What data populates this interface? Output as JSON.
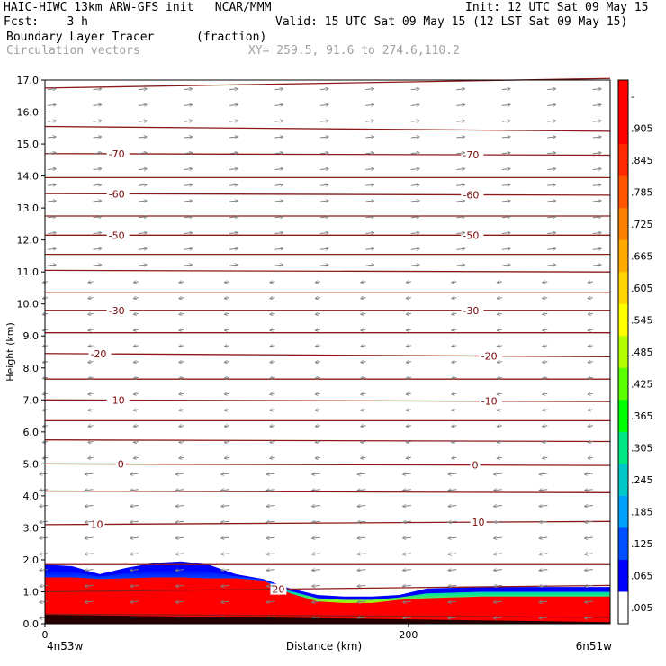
{
  "header": {
    "line1_left": "HAIC-HIWC 13km ARW-GFS init   NCAR/MMM",
    "line1_right": "Init: 12 UTC Sat 09 May 15",
    "line2_left": "Fcst:    3 h",
    "line2_right": "Valid: 15 UTC Sat 09 May 15 (12 LST Sat 09 May 15)",
    "line3_left": "Boundary Layer Tracer",
    "line3_unit": "(fraction)",
    "line4_left": "Circulation vectors",
    "line4_xy": "XY= 259.5, 91.6 to 274.6,110.2"
  },
  "chart_data": {
    "type": "heatmap",
    "ylabel": "Height (km)",
    "xlabel": "Distance (km)",
    "ylim": [
      0,
      17
    ],
    "xlim": [
      0,
      311
    ],
    "y_ticks": [
      "0.0",
      "1.0",
      "2.0",
      "3.0",
      "4.0",
      "5.0",
      "6.0",
      "7.0",
      "8.0",
      "9.0",
      "10.0",
      "11.0",
      "12.0",
      "13.0",
      "14.0",
      "15.0",
      "16.0",
      "17.0"
    ],
    "x_ticks": [
      {
        "value": 0,
        "label": "0"
      },
      {
        "value": 200,
        "label": "200"
      }
    ],
    "x_endpoints": {
      "left": "4n53w",
      "right": "6n51w"
    },
    "colorbar": {
      "labels": [
        "-",
        ".905",
        ".845",
        ".785",
        ".725",
        ".665",
        ".605",
        ".545",
        ".485",
        ".425",
        ".365",
        ".305",
        ".245",
        ".185",
        ".125",
        ".065",
        ".005"
      ],
      "colors": [
        "#ff0000",
        "#ff0000",
        "#ff2a00",
        "#ff5500",
        "#ff8000",
        "#ffaa00",
        "#ffd400",
        "#ffff00",
        "#b4ff00",
        "#5aff00",
        "#00ff00",
        "#00e680",
        "#00c8c8",
        "#00a0ff",
        "#0050ff",
        "#0000ff",
        "#ffffff"
      ]
    },
    "tracer_top_km": [
      {
        "x": 0,
        "red": 1.45,
        "blue": 1.85
      },
      {
        "x": 15,
        "red": 1.45,
        "blue": 1.8
      },
      {
        "x": 30,
        "red": 1.4,
        "blue": 1.55
      },
      {
        "x": 45,
        "red": 1.42,
        "blue": 1.75
      },
      {
        "x": 60,
        "red": 1.45,
        "blue": 1.9
      },
      {
        "x": 75,
        "red": 1.45,
        "blue": 1.95
      },
      {
        "x": 90,
        "red": 1.42,
        "blue": 1.85
      },
      {
        "x": 105,
        "red": 1.42,
        "blue": 1.55
      },
      {
        "x": 120,
        "red": 1.35,
        "blue": 1.4
      },
      {
        "x": 135,
        "red": 0.95,
        "blue": 1.1
      },
      {
        "x": 150,
        "red": 0.7,
        "blue": 0.9
      },
      {
        "x": 165,
        "red": 0.65,
        "blue": 0.85
      },
      {
        "x": 180,
        "red": 0.65,
        "blue": 0.85
      },
      {
        "x": 195,
        "red": 0.75,
        "blue": 0.9
      },
      {
        "x": 210,
        "red": 0.8,
        "blue": 1.1
      },
      {
        "x": 240,
        "red": 0.85,
        "blue": 1.15
      },
      {
        "x": 270,
        "red": 0.85,
        "blue": 1.15
      },
      {
        "x": 311,
        "red": 0.85,
        "blue": 1.15
      }
    ],
    "contours": [
      {
        "label": "-70",
        "y_left": 14.7,
        "y_right": 14.65,
        "label_x": [
          35,
          230
        ]
      },
      {
        "label": "-60",
        "y_left": 13.45,
        "y_right": 13.4,
        "label_x": [
          35,
          230
        ]
      },
      {
        "label": "-50",
        "y_left": 12.15,
        "y_right": 12.15,
        "label_x": [
          35,
          230
        ]
      },
      {
        "label": "-30",
        "y_left": 9.8,
        "y_right": 9.8,
        "label_x": [
          35,
          230
        ]
      },
      {
        "label": "-20",
        "y_left": 8.45,
        "y_right": 8.35,
        "label_x": [
          25,
          240
        ]
      },
      {
        "label": "-10",
        "y_left": 7.0,
        "y_right": 6.95,
        "label_x": [
          35,
          240
        ]
      },
      {
        "label": "0",
        "y_left": 5.0,
        "y_right": 4.95,
        "label_x": [
          40,
          235
        ]
      },
      {
        "label": "10",
        "y_left": 3.1,
        "y_right": 3.2,
        "label_x": [
          25,
          235
        ]
      },
      {
        "label": "20",
        "y_left": 1.0,
        "y_right": 1.2,
        "label_x": [
          125
        ]
      },
      {
        "label": "",
        "y_left": 16.75,
        "y_right": 17.05,
        "label_x": []
      },
      {
        "label": "",
        "y_left": 15.55,
        "y_right": 15.4,
        "label_x": []
      },
      {
        "label": "",
        "y_left": 13.95,
        "y_right": 13.95,
        "label_x": []
      },
      {
        "label": "",
        "y_left": 12.75,
        "y_right": 12.75,
        "label_x": []
      },
      {
        "label": "",
        "y_left": 11.55,
        "y_right": 11.55,
        "label_x": []
      },
      {
        "label": "",
        "y_left": 11.05,
        "y_right": 11.0,
        "label_x": []
      },
      {
        "label": "",
        "y_left": 10.35,
        "y_right": 10.35,
        "label_x": []
      },
      {
        "label": "",
        "y_left": 9.1,
        "y_right": 9.1,
        "label_x": []
      },
      {
        "label": "",
        "y_left": 7.65,
        "y_right": 7.65,
        "label_x": []
      },
      {
        "label": "",
        "y_left": 6.35,
        "y_right": 6.35,
        "label_x": []
      },
      {
        "label": "",
        "y_left": 5.75,
        "y_right": 5.7,
        "label_x": []
      },
      {
        "label": "",
        "y_left": 4.15,
        "y_right": 4.1,
        "label_x": []
      },
      {
        "label": "",
        "y_left": 1.85,
        "y_right": 1.85,
        "label_x": []
      },
      {
        "label": "",
        "y_left": 0.3,
        "y_right": 0.2,
        "label_x": []
      }
    ],
    "vectors": {
      "x_columns": [
        0,
        25,
        50,
        75,
        100,
        125,
        150,
        175,
        200,
        225,
        250,
        275,
        300
      ],
      "direction_by_height": [
        {
          "from_km": 0.0,
          "to_km": 5.0,
          "u": -1
        },
        {
          "from_km": 5.0,
          "to_km": 11.0,
          "u": -0.6
        },
        {
          "from_km": 11.0,
          "to_km": 17.0,
          "u": 1
        }
      ]
    }
  }
}
